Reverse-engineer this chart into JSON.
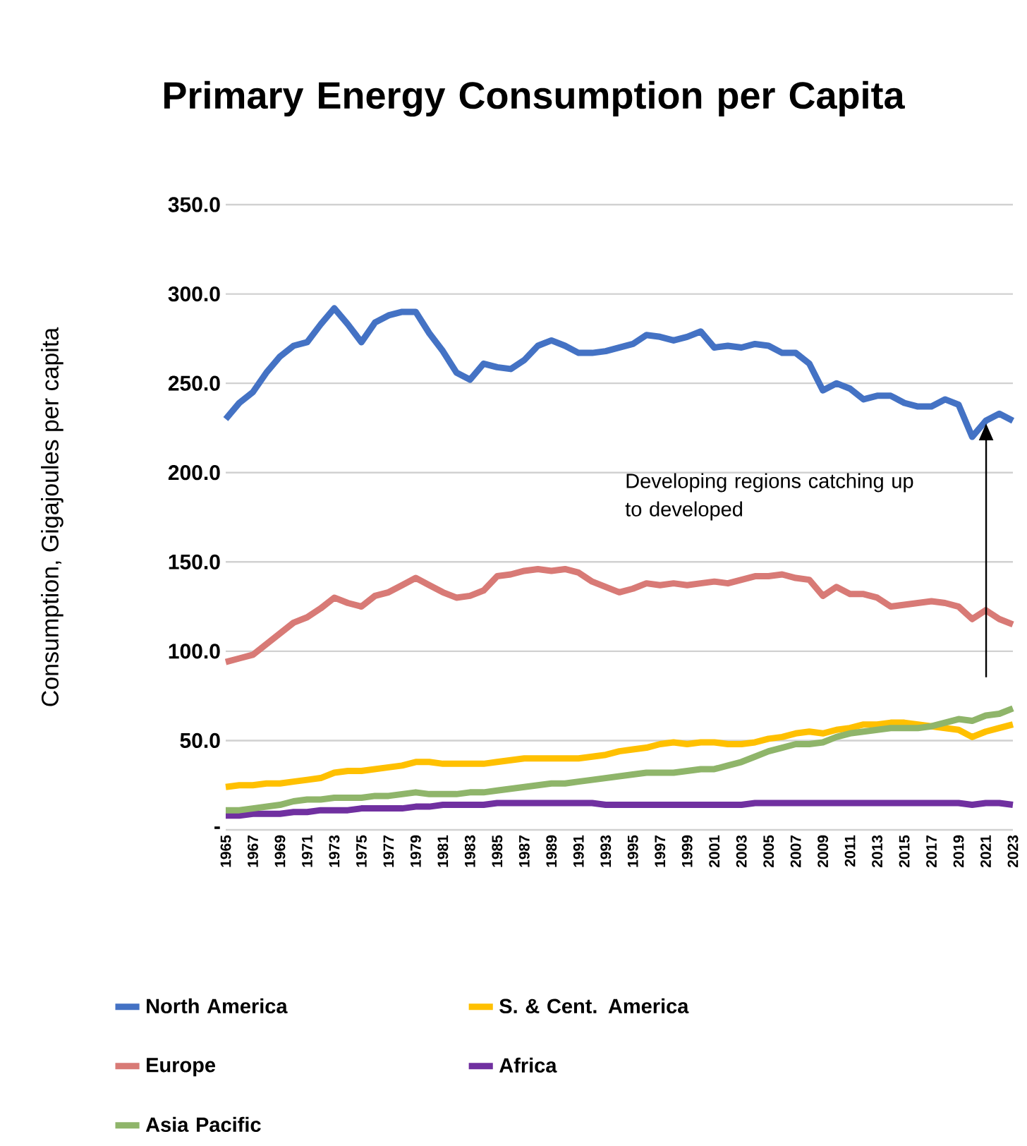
{
  "chart_data": {
    "type": "line",
    "title": "Primary Energy Consumption per Capita",
    "ylabel": "Consumption, Gigajoules per capita",
    "categories": [
      "1965",
      null,
      "1967",
      null,
      "1969",
      null,
      "1971",
      null,
      "1973",
      null,
      "1975",
      null,
      "1977",
      null,
      "1979",
      null,
      "1981",
      null,
      "1983",
      null,
      "1985",
      null,
      "1987",
      null,
      "1989",
      null,
      "1991",
      null,
      "1993",
      null,
      "1995",
      null,
      "1997",
      null,
      "1999",
      null,
      "2001",
      null,
      "2003",
      null,
      "2005",
      null,
      "2007",
      null,
      "2009",
      null,
      "2011",
      null,
      "2013",
      null,
      "2015",
      null,
      "2017",
      null,
      "2019",
      null,
      "2021",
      null,
      "2023"
    ],
    "series": [
      {
        "name": "North America",
        "color": "#4472c4",
        "values": [
          230,
          239,
          245,
          256,
          265,
          271,
          273,
          283,
          292,
          283,
          273,
          284,
          288,
          290,
          290,
          278,
          268,
          256,
          252,
          261,
          259,
          258,
          263,
          271,
          274,
          271,
          267,
          267,
          268,
          270,
          272,
          277,
          276,
          274,
          276,
          279,
          270,
          271,
          270,
          272,
          271,
          267,
          267,
          261,
          246,
          250,
          247,
          241,
          243,
          243,
          239,
          237,
          237,
          241,
          238,
          220,
          229,
          233,
          229
        ]
      },
      {
        "name": "S. & Cent. America",
        "color": "#ffc000",
        "values": [
          24,
          25,
          25,
          26,
          26,
          27,
          28,
          29,
          32,
          33,
          33,
          34,
          35,
          36,
          38,
          38,
          37,
          37,
          37,
          37,
          38,
          39,
          40,
          40,
          40,
          40,
          40,
          41,
          42,
          44,
          45,
          46,
          48,
          49,
          48,
          49,
          49,
          48,
          48,
          49,
          51,
          52,
          54,
          55,
          54,
          56,
          57,
          59,
          59,
          60,
          60,
          59,
          58,
          57,
          56,
          52,
          55,
          57,
          59
        ]
      },
      {
        "name": "Europe",
        "color": "#d87a76",
        "values": [
          94,
          96,
          98,
          104,
          110,
          116,
          119,
          124,
          130,
          127,
          125,
          131,
          133,
          137,
          141,
          137,
          133,
          130,
          131,
          134,
          142,
          143,
          145,
          146,
          145,
          146,
          144,
          139,
          136,
          133,
          135,
          138,
          137,
          138,
          137,
          138,
          139,
          138,
          140,
          142,
          142,
          143,
          141,
          140,
          131,
          136,
          132,
          132,
          130,
          125,
          126,
          127,
          128,
          127,
          125,
          118,
          123,
          118,
          115
        ]
      },
      {
        "name": "Africa",
        "color": "#7030a0",
        "values": [
          8,
          8,
          9,
          9,
          9,
          10,
          10,
          11,
          11,
          11,
          12,
          12,
          12,
          12,
          13,
          13,
          14,
          14,
          14,
          14,
          15,
          15,
          15,
          15,
          15,
          15,
          15,
          15,
          14,
          14,
          14,
          14,
          14,
          14,
          14,
          14,
          14,
          14,
          14,
          15,
          15,
          15,
          15,
          15,
          15,
          15,
          15,
          15,
          15,
          15,
          15,
          15,
          15,
          15,
          15,
          14,
          15,
          15,
          14
        ]
      },
      {
        "name": "Asia Pacific",
        "color": "#8fb56a",
        "values": [
          11,
          11,
          12,
          13,
          14,
          16,
          17,
          17,
          18,
          18,
          18,
          19,
          19,
          20,
          21,
          20,
          20,
          20,
          21,
          21,
          22,
          23,
          24,
          25,
          26,
          26,
          27,
          28,
          29,
          30,
          31,
          32,
          32,
          32,
          33,
          34,
          34,
          36,
          38,
          41,
          44,
          46,
          48,
          48,
          49,
          52,
          54,
          55,
          56,
          57,
          57,
          57,
          58,
          60,
          62,
          61,
          64,
          65,
          68
        ]
      }
    ],
    "ylim": [
      0,
      350
    ],
    "yticks": [
      {
        "value": 0,
        "label": "-"
      },
      {
        "value": 50,
        "label": "50.0"
      },
      {
        "value": 100,
        "label": "100.0"
      },
      {
        "value": 150,
        "label": "150.0"
      },
      {
        "value": 200,
        "label": "200.0"
      },
      {
        "value": 250,
        "label": "250.0"
      },
      {
        "value": 300,
        "label": "300.0"
      },
      {
        "value": 350,
        "label": "350.0"
      }
    ],
    "grid": "y",
    "legend": "bottom",
    "marker": "none",
    "line_style": "solid",
    "annotations": [
      "Developing regions catching up to developed"
    ]
  }
}
